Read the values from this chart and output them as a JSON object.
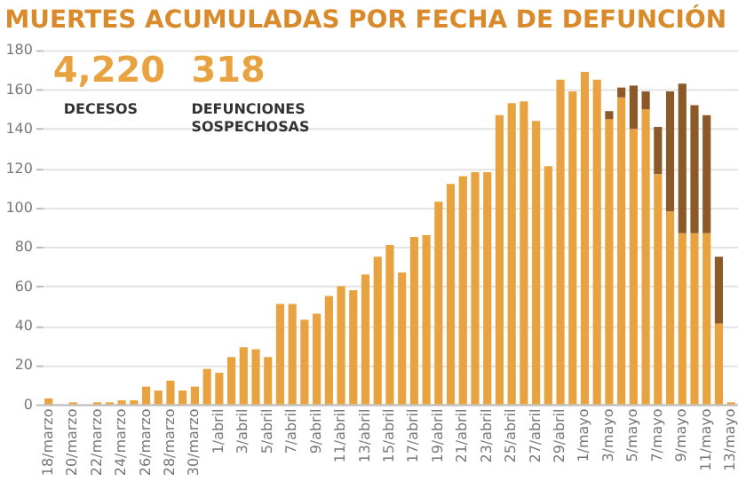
{
  "chart_data": {
    "type": "bar",
    "title": "MUERTES ACUMULADAS POR FECHA DE DEFUNCIÓN",
    "categories": [
      "18/marzo",
      null,
      "20/marzo",
      null,
      "22/marzo",
      null,
      "24/marzo",
      null,
      "26/marzo",
      null,
      "28/marzo",
      null,
      "30/marzo",
      null,
      "1/abril",
      null,
      "3/abril",
      null,
      "5/abril",
      null,
      "7/abril",
      null,
      "9/abril",
      null,
      "11/abril",
      null,
      "13/abril",
      null,
      "15/abril",
      null,
      "17/abril",
      null,
      "19/abril",
      null,
      "21/abril",
      null,
      "23/abril",
      null,
      "25/abril",
      null,
      "27/abril",
      null,
      "29/abril",
      null,
      "1/mayo",
      null,
      "3/mayo",
      null,
      "5/mayo",
      null,
      "7/mayo",
      null,
      "9/mayo",
      null,
      "11/mayo",
      null,
      "13/mayo"
    ],
    "stacked": true,
    "series": [
      {
        "color": "#e8a340",
        "values": [
          3,
          0,
          1,
          0,
          1,
          1,
          2,
          2,
          9,
          7,
          12,
          7,
          9,
          18,
          16,
          24,
          29,
          28,
          24,
          51,
          51,
          43,
          46,
          55,
          60,
          58,
          66,
          75,
          81,
          67,
          85,
          86,
          103,
          112,
          116,
          118,
          118,
          147,
          153,
          154,
          144,
          121,
          165,
          159,
          169,
          165,
          145,
          156,
          140,
          150,
          117,
          98,
          87,
          87,
          87,
          41,
          1
        ]
      },
      {
        "color": "#8c5a28",
        "values": [
          null,
          null,
          null,
          null,
          null,
          null,
          null,
          null,
          null,
          null,
          null,
          null,
          null,
          null,
          null,
          null,
          null,
          null,
          null,
          null,
          null,
          null,
          null,
          null,
          null,
          null,
          null,
          null,
          null,
          null,
          null,
          null,
          null,
          null,
          null,
          null,
          null,
          null,
          null,
          null,
          null,
          null,
          null,
          null,
          null,
          null,
          4,
          5,
          22,
          9,
          24,
          61,
          76,
          65,
          60,
          34,
          null
        ]
      }
    ],
    "ylim": [
      0,
      180
    ],
    "yticks": [
      0,
      20,
      40,
      60,
      80,
      100,
      120,
      140,
      160,
      180
    ],
    "grid": "y",
    "annotations": [
      "4,220",
      "DECESOS",
      "318",
      "DEFUNCIONES SOSPECHOSAS"
    ]
  }
}
